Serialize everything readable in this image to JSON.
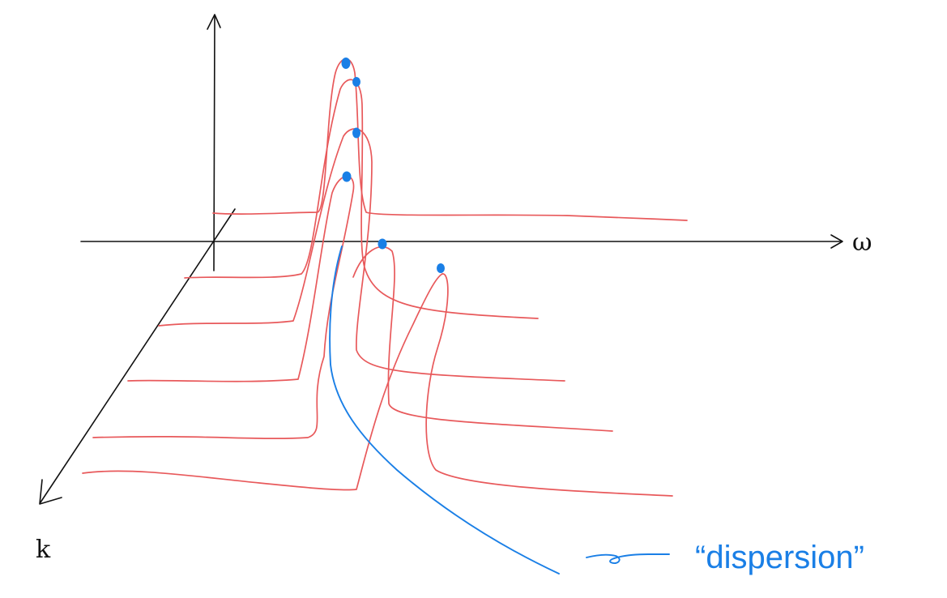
{
  "diagram": {
    "axis_labels": {
      "omega": "ω",
      "k": "k"
    },
    "legend": {
      "label": "“dispersion”"
    },
    "colors": {
      "curves": "#e8595b",
      "dispersion": "#1a7fe6",
      "axes": "#111111"
    }
  }
}
